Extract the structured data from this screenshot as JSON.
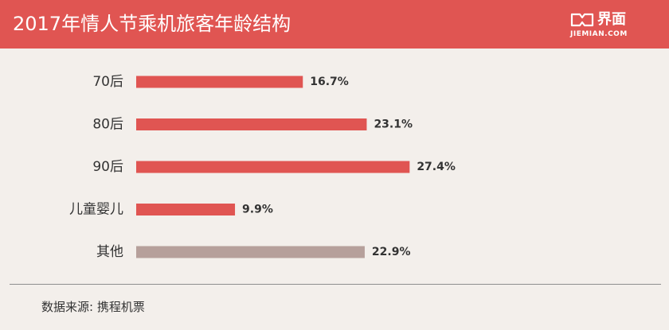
{
  "header": {
    "title": "2017年情人节乘机旅客年龄结构",
    "brand_name": "界面",
    "brand_domain": "JIEMIAN.COM"
  },
  "footer": {
    "source": "数据来源: 携程机票"
  },
  "colors": {
    "header_bg": "#e05552",
    "bar_primary": "#e05552",
    "bar_other": "#b6a09b",
    "background": "#f3efeb"
  },
  "chart_data": {
    "type": "bar",
    "orientation": "horizontal",
    "categories": [
      "70后",
      "80后",
      "90后",
      "儿童婴儿",
      "其他"
    ],
    "values": [
      16.7,
      23.1,
      27.4,
      9.9,
      22.9
    ],
    "value_labels": [
      "16.7%",
      "23.1%",
      "27.4%",
      "9.9%",
      "22.9%"
    ],
    "unit": "%",
    "title": "2017年情人节乘机旅客年龄结构",
    "xlabel": "",
    "ylabel": "",
    "grid": false,
    "legend": "none"
  }
}
